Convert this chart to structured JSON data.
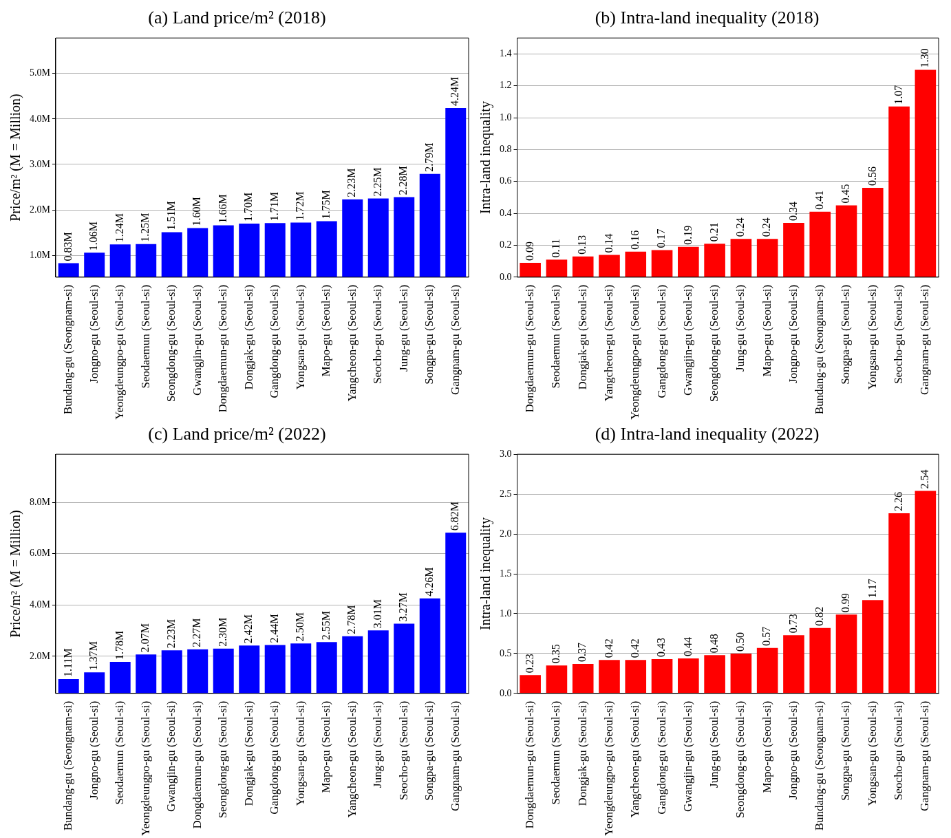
{
  "chart_data": [
    {
      "type": "bar",
      "title": "(a) Land price/m² (2018)",
      "ylabel": "Price/m² (M = Million)",
      "categories": [
        "Bundang-gu (Seongnam-si)",
        "Jongno-gu (Seoul-si)",
        "Yeongdeungpo-gu (Seoul-si)",
        "Seodaemun (Seoul-si)",
        "Seongdong-gu (Seoul-si)",
        "Gwangjin-gu (Seoul-si)",
        "Dongdaemun-gu (Seoul-si)",
        "Dongjak-gu (Seoul-si)",
        "Gangdong-gu (Seoul-si)",
        "Yongsan-gu (Seoul-si)",
        "Mapo-gu (Seoul-si)",
        "Yangcheon-gu (Seoul-si)",
        "Seocho-gu (Seoul-si)",
        "Jung-gu (Seoul-si)",
        "Songpa-gu (Seoul-si)",
        "Gangnam-gu (Seoul-si)"
      ],
      "values": [
        0.83,
        1.06,
        1.24,
        1.25,
        1.51,
        1.6,
        1.66,
        1.7,
        1.71,
        1.72,
        1.75,
        2.23,
        2.25,
        2.28,
        2.79,
        4.24
      ],
      "value_labels": [
        "0.83M",
        "1.06M",
        "1.24M",
        "1.25M",
        "1.51M",
        "1.60M",
        "1.66M",
        "1.70M",
        "1.71M",
        "1.72M",
        "1.75M",
        "2.23M",
        "2.25M",
        "2.28M",
        "2.79M",
        "4.24M"
      ],
      "color": "#0000ff",
      "ylim": [
        0.52,
        5.78
      ],
      "yticks": [
        {
          "value": 1,
          "label": "1.0M"
        },
        {
          "value": 2,
          "label": "2.0M"
        },
        {
          "value": 3,
          "label": "3.0M"
        },
        {
          "value": 4,
          "label": "4.0M"
        },
        {
          "value": 5,
          "label": "5.0M"
        }
      ],
      "grid": "y"
    },
    {
      "type": "bar",
      "title": "(b) Intra-land inequality (2018)",
      "ylabel": "Intra-land inequality",
      "categories": [
        "Dongdaemun-gu (Seoul-si)",
        "Seodaemun (Seoul-si)",
        "Dongjak-gu (Seoul-si)",
        "Yangcheon-gu (Seoul-si)",
        "Yeongdeungpo-gu (Seoul-si)",
        "Gangdong-gu (Seoul-si)",
        "Gwangjin-gu (Seoul-si)",
        "Seongdong-gu (Seoul-si)",
        "Jung-gu (Seoul-si)",
        "Mapo-gu (Seoul-si)",
        "Jongno-gu (Seoul-si)",
        "Bundang-gu (Seongnam-si)",
        "Songpa-gu (Seoul-si)",
        "Yongsan-gu (Seoul-si)",
        "Seocho-gu (Seoul-si)",
        "Gangnam-gu (Seoul-si)"
      ],
      "values": [
        0.09,
        0.11,
        0.13,
        0.14,
        0.16,
        0.17,
        0.19,
        0.21,
        0.24,
        0.24,
        0.34,
        0.41,
        0.45,
        0.56,
        1.07,
        1.3
      ],
      "value_labels": [
        "0.09",
        "0.11",
        "0.13",
        "0.14",
        "0.16",
        "0.17",
        "0.19",
        "0.21",
        "0.24",
        "0.24",
        "0.34",
        "0.41",
        "0.45",
        "0.56",
        "1.07",
        "1.30"
      ],
      "color": "#ff0000",
      "ylim": [
        0,
        1.5
      ],
      "yticks": [
        {
          "value": 0,
          "label": "0.0"
        },
        0.2,
        0.4,
        0.6,
        0.8,
        {
          "value": 1,
          "label": "1.0"
        },
        1.2,
        1.4
      ],
      "grid": "y"
    },
    {
      "type": "bar",
      "title": "(c) Land price/m² (2022)",
      "ylabel": "Price/m² (M = Million)",
      "categories": [
        "Bundang-gu (Seongnam-si)",
        "Jongno-gu (Seoul-si)",
        "Seodaemun (Seoul-si)",
        "Yeongdeungpo-gu (Seoul-si)",
        "Gwangjin-gu (Seoul-si)",
        "Dongdaemun-gu (Seoul-si)",
        "Seongdong-gu (Seoul-si)",
        "Dongjak-gu (Seoul-si)",
        "Gangdong-gu (Seoul-si)",
        "Yongsan-gu (Seoul-si)",
        "Mapo-gu (Seoul-si)",
        "Yangcheon-gu (Seoul-si)",
        "Jung-gu (Seoul-si)",
        "Seocho-gu (Seoul-si)",
        "Songpa-gu (Seoul-si)",
        "Gangnam-gu (Seoul-si)"
      ],
      "values": [
        1.11,
        1.37,
        1.78,
        2.07,
        2.23,
        2.27,
        2.3,
        2.42,
        2.44,
        2.5,
        2.55,
        2.78,
        3.01,
        3.27,
        4.26,
        6.82
      ],
      "value_labels": [
        "1.11M",
        "1.37M",
        "1.78M",
        "2.07M",
        "2.23M",
        "2.27M",
        "2.30M",
        "2.42M",
        "2.44M",
        "2.50M",
        "2.55M",
        "2.78M",
        "3.01M",
        "3.27M",
        "4.26M",
        "6.82M"
      ],
      "color": "#0000ff",
      "ylim": [
        0.55,
        9.88
      ],
      "yticks": [
        {
          "value": 2,
          "label": "2.0M"
        },
        {
          "value": 4,
          "label": "4.0M"
        },
        {
          "value": 6,
          "label": "6.0M"
        },
        {
          "value": 8,
          "label": "8.0M"
        }
      ],
      "grid": "y"
    },
    {
      "type": "bar",
      "title": "(d) Intra-land inequality (2022)",
      "ylabel": "Intra-land inequality",
      "categories": [
        "Dongdaemun-gu (Seoul-si)",
        "Seodaemun (Seoul-si)",
        "Dongjak-gu (Seoul-si)",
        "Yeongdeungpo-gu (Seoul-si)",
        "Yangcheon-gu (Seoul-si)",
        "Gangdong-gu (Seoul-si)",
        "Gwangjin-gu (Seoul-si)",
        "Jung-gu (Seoul-si)",
        "Seongdong-gu (Seoul-si)",
        "Mapo-gu (Seoul-si)",
        "Jongno-gu (Seoul-si)",
        "Bundang-gu (Seongnam-si)",
        "Songpa-gu (Seoul-si)",
        "Yongsan-gu (Seoul-si)",
        "Seocho-gu (Seoul-si)",
        "Gangnam-gu (Seoul-si)"
      ],
      "values": [
        0.23,
        0.35,
        0.37,
        0.42,
        0.42,
        0.43,
        0.44,
        0.48,
        0.5,
        0.57,
        0.73,
        0.82,
        0.99,
        1.17,
        2.26,
        2.54
      ],
      "value_labels": [
        "0.23",
        "0.35",
        "0.37",
        "0.42",
        "0.42",
        "0.43",
        "0.44",
        "0.48",
        "0.50",
        "0.57",
        "0.73",
        "0.82",
        "0.99",
        "1.17",
        "2.26",
        "2.54"
      ],
      "color": "#ff0000",
      "ylim": [
        0,
        3
      ],
      "yticks": [
        {
          "value": 0,
          "label": "0.0"
        },
        0.5,
        {
          "value": 1,
          "label": "1.0"
        },
        1.5,
        {
          "value": 2,
          "label": "2.0"
        },
        2.5,
        {
          "value": 3,
          "label": "3.0"
        }
      ],
      "grid": "y"
    }
  ]
}
